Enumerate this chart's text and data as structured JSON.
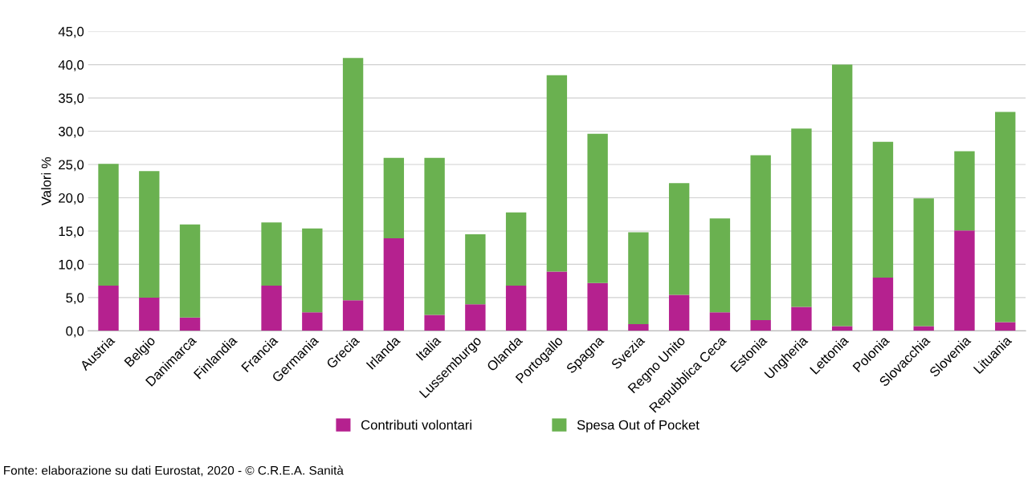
{
  "chart_data": {
    "type": "bar",
    "stacked": true,
    "ylabel": "Valori %",
    "categories": [
      "Austria",
      "Belgio",
      "Danimarca",
      "Finlandia",
      "Francia",
      "Germania",
      "Grecia",
      "Irlanda",
      "Italia",
      "Lussemburgo",
      "Olanda",
      "Portogallo",
      "Spagna",
      "Svezia",
      "Regno Unito",
      "Repubblica Ceca",
      "Estonia",
      "Ungheria",
      "Lettonia",
      "Polonia",
      "Slovacchia",
      "Slovenia",
      "Lituania"
    ],
    "series": [
      {
        "name": "Contributi volontari",
        "color": "#b5218f",
        "values": [
          6.8,
          5.0,
          2.0,
          null,
          6.8,
          2.8,
          4.6,
          13.9,
          2.4,
          4.0,
          6.8,
          8.9,
          7.2,
          1.0,
          5.4,
          2.8,
          1.6,
          3.6,
          0.7,
          8.0,
          0.7,
          15.1,
          1.3
        ]
      },
      {
        "name": "Spesa Out of Pocket",
        "color": "#6ab150",
        "values": [
          18.3,
          19.0,
          14.0,
          null,
          9.5,
          12.6,
          36.4,
          12.1,
          23.6,
          10.5,
          11.0,
          29.5,
          22.4,
          13.8,
          16.8,
          14.1,
          24.8,
          26.8,
          39.3,
          20.4,
          19.2,
          11.9,
          31.6
        ]
      }
    ],
    "ylim": [
      0,
      45
    ],
    "yticks": [
      {
        "value": 0,
        "label": "0,0"
      },
      {
        "value": 5,
        "label": "5,0"
      },
      {
        "value": 10,
        "label": "10,0"
      },
      {
        "value": 15,
        "label": "15,0"
      },
      {
        "value": 20,
        "label": "20,0"
      },
      {
        "value": 25,
        "label": "25,0"
      },
      {
        "value": 30,
        "label": "30,0"
      },
      {
        "value": 35,
        "label": "35,0"
      },
      {
        "value": 40,
        "label": "40,0"
      },
      {
        "value": 45,
        "label": "45,0"
      }
    ],
    "grid": "y",
    "legend": "bottom",
    "annotations": [
      "Fonte: elaborazione su dati Eurostat, 2020 - © C.R.E.A. Sanità"
    ]
  }
}
